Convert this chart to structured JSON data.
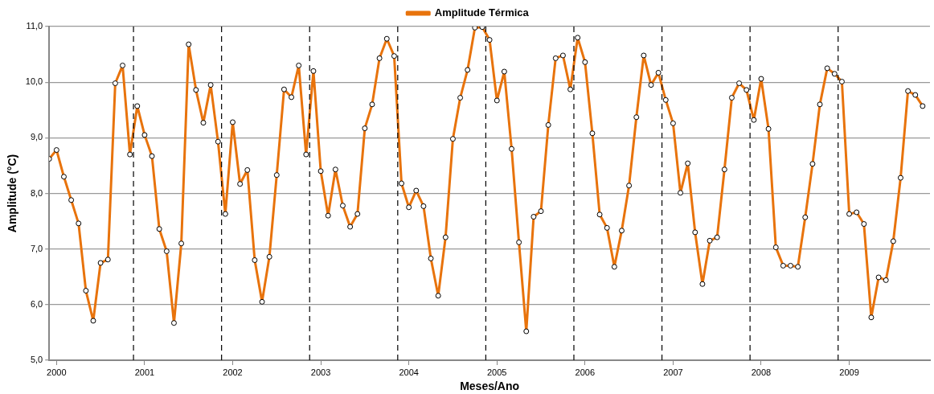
{
  "chart_data": {
    "type": "line",
    "xlabel": "Meses/Ano",
    "ylabel": "Amplitude (°C)",
    "x": [
      "2000-01",
      "2000-02",
      "2000-03",
      "2000-04",
      "2000-05",
      "2000-06",
      "2000-07",
      "2000-08",
      "2000-09",
      "2000-10",
      "2000-11",
      "2000-12",
      "2001-01",
      "2001-02",
      "2001-03",
      "2001-04",
      "2001-05",
      "2001-06",
      "2001-07",
      "2001-08",
      "2001-09",
      "2001-10",
      "2001-11",
      "2001-12",
      "2002-01",
      "2002-02",
      "2002-03",
      "2002-04",
      "2002-05",
      "2002-06",
      "2002-07",
      "2002-08",
      "2002-09",
      "2002-10",
      "2002-11",
      "2002-12",
      "2003-01",
      "2003-02",
      "2003-03",
      "2003-04",
      "2003-05",
      "2003-06",
      "2003-07",
      "2003-08",
      "2003-09",
      "2003-10",
      "2003-11",
      "2003-12",
      "2004-01",
      "2004-02",
      "2004-03",
      "2004-04",
      "2004-05",
      "2004-06",
      "2004-07",
      "2004-08",
      "2004-09",
      "2004-10",
      "2004-11",
      "2004-12",
      "2005-01",
      "2005-02",
      "2005-03",
      "2005-04",
      "2005-05",
      "2005-06",
      "2005-07",
      "2005-08",
      "2005-09",
      "2005-10",
      "2005-11",
      "2005-12",
      "2006-01",
      "2006-02",
      "2006-03",
      "2006-04",
      "2006-05",
      "2006-06",
      "2006-07",
      "2006-08",
      "2006-09",
      "2006-10",
      "2006-11",
      "2006-12",
      "2007-01",
      "2007-02",
      "2007-03",
      "2007-04",
      "2007-05",
      "2007-06",
      "2007-07",
      "2007-08",
      "2007-09",
      "2007-10",
      "2007-11",
      "2007-12",
      "2008-01",
      "2008-02",
      "2008-03",
      "2008-04",
      "2008-05",
      "2008-06",
      "2008-07",
      "2008-08",
      "2008-09",
      "2008-10",
      "2008-11",
      "2008-12",
      "2009-01",
      "2009-02",
      "2009-03",
      "2009-04",
      "2009-05",
      "2009-06",
      "2009-07",
      "2009-08",
      "2009-09",
      "2009-10",
      "2009-11",
      "2009-12"
    ],
    "series": [
      {
        "name": "Amplitude Térmica",
        "color": "#e8730c",
        "values": [
          8.62,
          8.78,
          8.3,
          7.88,
          7.46,
          6.25,
          5.71,
          6.75,
          6.81,
          9.98,
          10.3,
          8.7,
          9.57,
          9.05,
          8.67,
          7.36,
          6.96,
          5.67,
          7.1,
          10.68,
          9.86,
          9.27,
          9.95,
          8.93,
          7.63,
          9.28,
          8.17,
          8.42,
          6.8,
          6.05,
          6.86,
          8.33,
          9.87,
          9.73,
          10.3,
          8.7,
          10.2,
          8.4,
          7.6,
          8.43,
          7.78,
          7.4,
          7.63,
          9.17,
          9.6,
          10.43,
          10.78,
          10.47,
          8.18,
          7.75,
          8.05,
          7.77,
          6.83,
          6.16,
          7.21,
          8.98,
          9.72,
          10.22,
          10.98,
          10.99,
          10.76,
          9.67,
          10.19,
          8.8,
          7.12,
          5.52,
          7.58,
          7.68,
          9.23,
          10.43,
          10.48,
          9.87,
          10.8,
          10.36,
          9.08,
          7.62,
          7.38,
          6.68,
          7.33,
          8.14,
          9.37,
          10.48,
          9.95,
          10.17,
          9.68,
          9.26,
          8.01,
          8.54,
          7.3,
          6.37,
          7.15,
          7.21,
          8.43,
          9.72,
          9.98,
          9.86,
          9.32,
          10.06,
          9.16,
          7.03,
          6.7,
          6.7,
          6.68,
          7.57,
          8.53,
          9.6,
          10.25,
          10.15,
          10.01,
          7.63,
          7.66,
          7.45,
          5.77,
          6.49,
          6.44,
          7.14,
          8.28,
          9.84,
          9.77,
          9.57
        ]
      }
    ],
    "xlim": [
      "2000-01",
      "2010-01"
    ],
    "xticks": [
      {
        "value": "2000-02",
        "label": "2000"
      },
      {
        "value": "2001-02",
        "label": "2001"
      },
      {
        "value": "2002-02",
        "label": "2002"
      },
      {
        "value": "2003-02",
        "label": "2003"
      },
      {
        "value": "2004-02",
        "label": "2004"
      },
      {
        "value": "2005-02",
        "label": "2005"
      },
      {
        "value": "2006-02",
        "label": "2006"
      },
      {
        "value": "2007-02",
        "label": "2007"
      },
      {
        "value": "2008-02",
        "label": "2008"
      },
      {
        "value": "2009-02",
        "label": "2009"
      }
    ],
    "ylim": [
      5,
      11
    ],
    "yticks": [
      {
        "value": 5,
        "label": "5,0"
      },
      {
        "value": 6,
        "label": "6,0"
      },
      {
        "value": 7,
        "label": "7,0"
      },
      {
        "value": 8,
        "label": "8,0"
      },
      {
        "value": 9,
        "label": "9,0"
      },
      {
        "value": 10,
        "label": "10,0"
      },
      {
        "value": 11,
        "label": "11,0"
      }
    ],
    "ref_lines": [
      {
        "axis": "x",
        "value": "2000-12-16",
        "color": "#000000",
        "line_style": "dashed"
      },
      {
        "axis": "x",
        "value": "2001-12-16",
        "color": "#000000",
        "line_style": "dashed"
      },
      {
        "axis": "x",
        "value": "2002-12-16",
        "color": "#000000",
        "line_style": "dashed"
      },
      {
        "axis": "x",
        "value": "2003-12-16",
        "color": "#000000",
        "line_style": "dashed"
      },
      {
        "axis": "x",
        "value": "2004-12-16",
        "color": "#000000",
        "line_style": "dashed"
      },
      {
        "axis": "x",
        "value": "2005-12-16",
        "color": "#000000",
        "line_style": "dashed"
      },
      {
        "axis": "x",
        "value": "2006-12-16",
        "color": "#000000",
        "line_style": "dashed"
      },
      {
        "axis": "x",
        "value": "2007-12-16",
        "color": "#000000",
        "line_style": "dashed"
      },
      {
        "axis": "x",
        "value": "2008-12-16",
        "color": "#000000",
        "line_style": "dashed"
      }
    ],
    "grid": "y",
    "legend": "top",
    "marker": "circle",
    "line_style": "solid"
  }
}
